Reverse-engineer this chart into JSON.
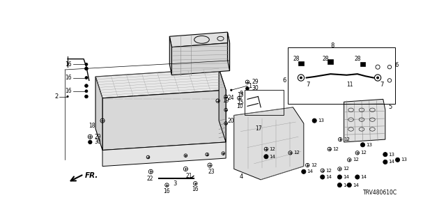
{
  "bg_color": "#ffffff",
  "part_number": "TRV480610C",
  "font_size": 6.0,
  "line_color": "#1a1a1a"
}
